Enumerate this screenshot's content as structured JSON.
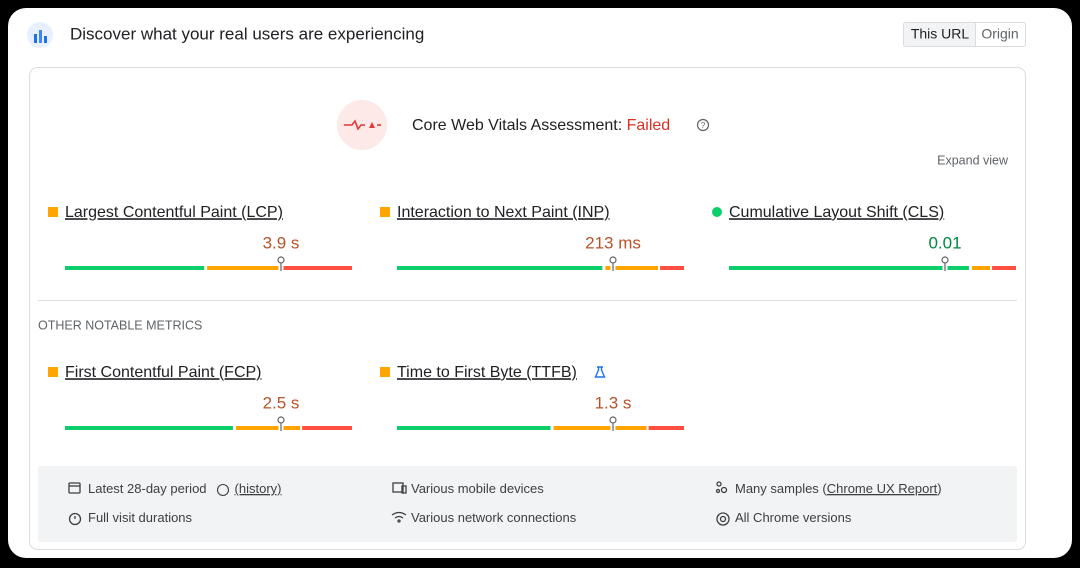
{
  "header": {
    "title": "Discover what your real users are experiencing",
    "tabs": [
      "This URL",
      "Origin"
    ]
  },
  "assessment": {
    "label": "Core Web Vitals Assessment:",
    "status": "Failed",
    "expand": "Expand view"
  },
  "core_metrics": [
    {
      "name": "Largest Contentful Paint (LCP)",
      "value": "3.9 s",
      "color": "#ffa400",
      "text_color": "#b4542a",
      "distribution": [
        49,
        26,
        25
      ]
    },
    {
      "name": "Interaction to Next Paint (INP)",
      "value": "213 ms",
      "color": "#ffa400",
      "text_color": "#b4542a",
      "distribution": [
        72,
        19,
        9
      ]
    },
    {
      "name": "Cumulative Layout Shift (CLS)",
      "value": "0.01",
      "color": "#0cce6b",
      "text_color": "#018642",
      "distribution": [
        84,
        7,
        9
      ]
    }
  ],
  "other_heading": "OTHER NOTABLE METRICS",
  "other_metrics": [
    {
      "name": "First Contentful Paint (FCP)",
      "value": "2.5 s",
      "color": "#ffa400",
      "text_color": "#b4542a",
      "distribution": [
        59,
        23,
        18
      ]
    },
    {
      "name": "Time to First Byte (TTFB)",
      "value": "1.3 s",
      "color": "#ffa400",
      "text_color": "#b4542a",
      "distribution": [
        54,
        33,
        13
      ]
    }
  ],
  "footer": [
    {
      "text": "Latest 28-day period",
      "link": "(history)"
    },
    {
      "text": "Full visit durations"
    },
    {
      "text": "Various mobile devices"
    },
    {
      "text": "Various network connections"
    },
    {
      "text": "Many samples (",
      "link": "Chrome UX Report",
      "suffix": ")"
    },
    {
      "text": "All Chrome versions"
    }
  ]
}
